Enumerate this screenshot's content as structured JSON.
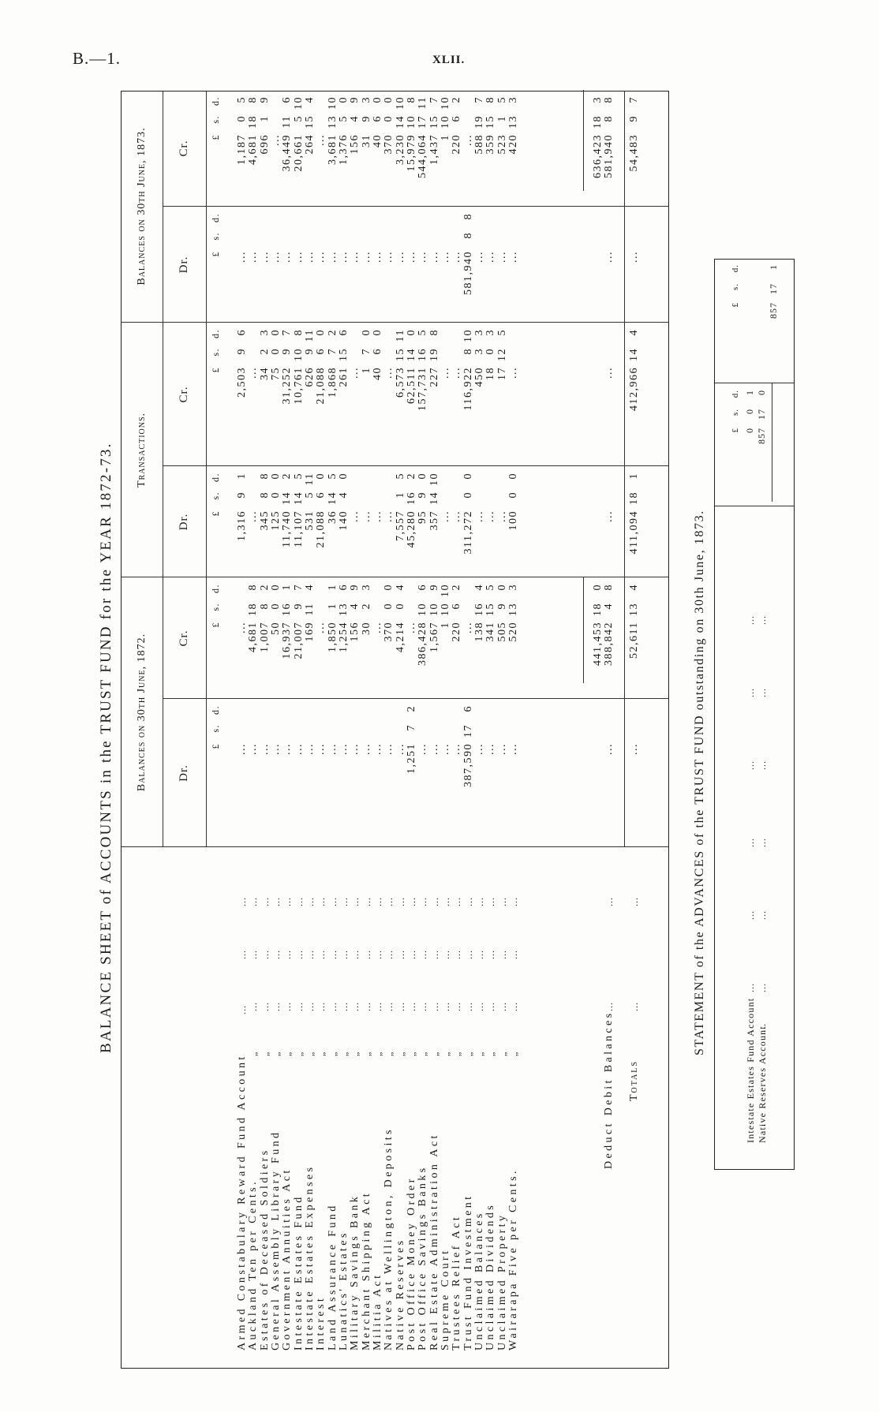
{
  "page": {
    "code": "B.—1.",
    "number": "XLII."
  },
  "balance_sheet": {
    "title": "BALANCE SHEET of ACCOUNTS in the TRUST FUND for the YEAR 1872-73.",
    "headers": {
      "bal1872": "Balances on 30th June, 1872.",
      "transactions": "Transactions.",
      "bal1873": "Balances on 30th June, 1873.",
      "dr": "Dr.",
      "cr": "Cr.",
      "pound": "£",
      "shilling": "s.",
      "pence": "d."
    },
    "ditto": "„",
    "dots": "...",
    "columns": [
      "b72_dr",
      "b72_cr",
      "tr_dr",
      "tr_cr",
      "b73_dr",
      "b73_cr"
    ],
    "rows": [
      {
        "account": "Armed Constabulary Reward Fund Account",
        "b72_dr": [
          "..."
        ],
        "b72_cr": [
          "..."
        ],
        "tr_dr": [
          "1,316",
          "9",
          "1"
        ],
        "tr_cr": [
          "2,503",
          "9",
          "6"
        ],
        "b73_dr": [
          "..."
        ],
        "b73_cr": [
          "1,187",
          "0",
          "5"
        ]
      },
      {
        "account": "Auckland Ten per Cents.",
        "b72_dr": [
          "..."
        ],
        "b72_cr": [
          "4,681",
          "18",
          "8"
        ],
        "tr_dr": [
          "..."
        ],
        "tr_cr": [
          "..."
        ],
        "b73_dr": [
          "..."
        ],
        "b73_cr": [
          "4,681",
          "18",
          "8"
        ]
      },
      {
        "account": "Estates of Deceased Soldiers",
        "b72_dr": [
          "..."
        ],
        "b72_cr": [
          "1,007",
          "8",
          "2"
        ],
        "tr_dr": [
          "345",
          "8",
          "8"
        ],
        "tr_cr": [
          "34",
          "2",
          "3"
        ],
        "b73_dr": [
          "..."
        ],
        "b73_cr": [
          "696",
          "1",
          "9"
        ]
      },
      {
        "account": "General Assembly Library Fund",
        "b72_dr": [
          "..."
        ],
        "b72_cr": [
          "50",
          "0",
          "0"
        ],
        "tr_dr": [
          "125",
          "0",
          "0"
        ],
        "tr_cr": [
          "75",
          "0",
          "0"
        ],
        "b73_dr": [
          "..."
        ],
        "b73_cr": [
          "..."
        ]
      },
      {
        "account": "Government Annuities Act",
        "b72_dr": [
          "..."
        ],
        "b72_cr": [
          "16,937",
          "16",
          "1"
        ],
        "tr_dr": [
          "11,740",
          "14",
          "2"
        ],
        "tr_cr": [
          "31,252",
          "9",
          "7"
        ],
        "b73_dr": [
          "..."
        ],
        "b73_cr": [
          "36,449",
          "11",
          "6"
        ]
      },
      {
        "account": "Intestate Estates Fund",
        "b72_dr": [
          "..."
        ],
        "b72_cr": [
          "21,007",
          "9",
          "7"
        ],
        "tr_dr": [
          "11,107",
          "14",
          "5"
        ],
        "tr_cr": [
          "10,761",
          "10",
          "8"
        ],
        "b73_dr": [
          "..."
        ],
        "b73_cr": [
          "20,661",
          "5",
          "10"
        ]
      },
      {
        "account": "Intestate Estates Expenses",
        "b72_dr": [
          "..."
        ],
        "b72_cr": [
          "169",
          "11",
          "4"
        ],
        "tr_dr": [
          "531",
          "5",
          "11"
        ],
        "tr_cr": [
          "626",
          "9",
          "11"
        ],
        "b73_dr": [
          "..."
        ],
        "b73_cr": [
          "264",
          "15",
          "4"
        ]
      },
      {
        "account": "Interest",
        "b72_dr": [
          "..."
        ],
        "b72_cr": [
          "..."
        ],
        "tr_dr": [
          "21,088",
          "6",
          "0"
        ],
        "tr_cr": [
          "21,088",
          "6",
          "0"
        ],
        "b73_dr": [
          "..."
        ],
        "b73_cr": [
          "..."
        ]
      },
      {
        "account": "Land Assurance Fund",
        "b72_dr": [
          "..."
        ],
        "b72_cr": [
          "1,850",
          "1",
          "1"
        ],
        "tr_dr": [
          "36",
          "14",
          "5"
        ],
        "tr_cr": [
          "1,868",
          "7",
          "2"
        ],
        "b73_dr": [
          "..."
        ],
        "b73_cr": [
          "3,681",
          "13",
          "10"
        ]
      },
      {
        "account": "Lunatics' Estates",
        "b72_dr": [
          "..."
        ],
        "b72_cr": [
          "1,254",
          "13",
          "6"
        ],
        "tr_dr": [
          "140",
          "4",
          "0"
        ],
        "tr_cr": [
          "261",
          "15",
          "6"
        ],
        "b73_dr": [
          "..."
        ],
        "b73_cr": [
          "1,376",
          "5",
          "0"
        ]
      },
      {
        "account": "Military Savings Bank",
        "b72_dr": [
          "..."
        ],
        "b72_cr": [
          "156",
          "4",
          "9"
        ],
        "tr_dr": [
          "..."
        ],
        "tr_cr": [
          "..."
        ],
        "b73_dr": [
          "..."
        ],
        "b73_cr": [
          "156",
          "4",
          "9"
        ]
      },
      {
        "account": "Merchant Shipping Act",
        "b72_dr": [
          "..."
        ],
        "b72_cr": [
          "30",
          "2",
          "3"
        ],
        "tr_dr": [
          "..."
        ],
        "tr_cr": [
          "1",
          "7",
          "0"
        ],
        "b73_dr": [
          "..."
        ],
        "b73_cr": [
          "31",
          "9",
          "3"
        ]
      },
      {
        "account": "Militia Act",
        "b72_dr": [
          "..."
        ],
        "b72_cr": [
          "..."
        ],
        "tr_dr": [
          "..."
        ],
        "tr_cr": [
          "40",
          "6",
          "0"
        ],
        "b73_dr": [
          "..."
        ],
        "b73_cr": [
          "40",
          "6",
          "0"
        ]
      },
      {
        "account": "Natives at Wellington, Deposits",
        "b72_dr": [
          "..."
        ],
        "b72_cr": [
          "370",
          "0",
          "0"
        ],
        "tr_dr": [
          "..."
        ],
        "tr_cr": [
          "..."
        ],
        "b73_dr": [
          "..."
        ],
        "b73_cr": [
          "370",
          "0",
          "0"
        ]
      },
      {
        "account": "Native Reserves",
        "b72_dr": [
          "..."
        ],
        "b72_cr": [
          "4,214",
          "0",
          "4"
        ],
        "tr_dr": [
          "7,557",
          "1",
          "5"
        ],
        "tr_cr": [
          "6,573",
          "15",
          "11"
        ],
        "b73_dr": [
          "..."
        ],
        "b73_cr": [
          "3,230",
          "14",
          "10"
        ]
      },
      {
        "account": "Post Office Money Order",
        "b72_dr": [
          "1,251",
          "7",
          "2"
        ],
        "b72_cr": [
          "..."
        ],
        "tr_dr": [
          "45,280",
          "16",
          "2"
        ],
        "tr_cr": [
          "62,511",
          "14",
          "0"
        ],
        "b73_dr": [
          "..."
        ],
        "b73_cr": [
          "15,979",
          "10",
          "8"
        ]
      },
      {
        "account": "Post Office Savings Banks",
        "b72_dr": [
          "..."
        ],
        "b72_cr": [
          "386,428",
          "10",
          "6"
        ],
        "tr_dr": [
          "95",
          "9",
          "0"
        ],
        "tr_cr": [
          "157,731",
          "16",
          "5"
        ],
        "b73_dr": [
          "..."
        ],
        "b73_cr": [
          "544,064",
          "17",
          "11"
        ]
      },
      {
        "account": "Real Estate Administration Act",
        "b72_dr": [
          "..."
        ],
        "b72_cr": [
          "1,567",
          "10",
          "9"
        ],
        "tr_dr": [
          "357",
          "14",
          "10"
        ],
        "tr_cr": [
          "227",
          "19",
          "8"
        ],
        "b73_dr": [
          "..."
        ],
        "b73_cr": [
          "1,437",
          "15",
          "7"
        ]
      },
      {
        "account": "Supreme Court",
        "b72_dr": [
          "..."
        ],
        "b72_cr": [
          "1",
          "10",
          "10"
        ],
        "tr_dr": [
          "..."
        ],
        "tr_cr": [
          "..."
        ],
        "b73_dr": [
          "..."
        ],
        "b73_cr": [
          "1",
          "10",
          "10"
        ]
      },
      {
        "account": "Trustees Relief Act",
        "b72_dr": [
          "..."
        ],
        "b72_cr": [
          "220",
          "6",
          "2"
        ],
        "tr_dr": [
          "..."
        ],
        "tr_cr": [
          "..."
        ],
        "b73_dr": [
          "..."
        ],
        "b73_cr": [
          "220",
          "6",
          "2"
        ]
      },
      {
        "account": "Trust Fund Investment",
        "b72_dr": [
          "387,590",
          "17",
          "6"
        ],
        "b72_cr": [
          "..."
        ],
        "tr_dr": [
          "311,272",
          "0",
          "0"
        ],
        "tr_cr": [
          "116,922",
          "8",
          "10"
        ],
        "b73_dr": [
          "581,940",
          "8",
          "8"
        ],
        "b73_cr": [
          "..."
        ]
      },
      {
        "account": "Unclaimed Balances",
        "b72_dr": [
          "..."
        ],
        "b72_cr": [
          "138",
          "16",
          "4"
        ],
        "tr_dr": [
          "..."
        ],
        "tr_cr": [
          "450",
          "3",
          "3"
        ],
        "b73_dr": [
          "..."
        ],
        "b73_cr": [
          "588",
          "19",
          "7"
        ]
      },
      {
        "account": "Unclaimed Dividends",
        "b72_dr": [
          "..."
        ],
        "b72_cr": [
          "341",
          "15",
          "5"
        ],
        "tr_dr": [
          "..."
        ],
        "tr_cr": [
          "18",
          "0",
          "3"
        ],
        "b73_dr": [
          "..."
        ],
        "b73_cr": [
          "359",
          "15",
          "8"
        ]
      },
      {
        "account": "Unclaimed Property",
        "b72_dr": [
          "..."
        ],
        "b72_cr": [
          "505",
          "9",
          "0"
        ],
        "tr_dr": [
          "..."
        ],
        "tr_cr": [
          "17",
          "12",
          "5"
        ],
        "b73_dr": [
          "..."
        ],
        "b73_cr": [
          "523",
          "1",
          "5"
        ]
      },
      {
        "account": "Wairarapa Five per Cents.",
        "b72_dr": [
          "..."
        ],
        "b72_cr": [
          "520",
          "13",
          "3"
        ],
        "tr_dr": [
          "100",
          "0",
          "0"
        ],
        "tr_cr": [
          "..."
        ],
        "b73_dr": [
          "..."
        ],
        "b73_cr": [
          "420",
          "13",
          "3"
        ]
      }
    ],
    "subtotal": {
      "b72_cr": [
        "441,453",
        "18",
        "0"
      ],
      "b73_cr": [
        "636,423",
        "18",
        "3"
      ]
    },
    "deduct": {
      "label": "Deduct Debit Balances",
      "b72_dr": [
        "..."
      ],
      "b72_cr": [
        "388,842",
        "4",
        "8"
      ],
      "tr_dr": [
        "..."
      ],
      "tr_cr": [
        "..."
      ],
      "b73_dr": [
        "..."
      ],
      "b73_cr": [
        "581,940",
        "8",
        "8"
      ]
    },
    "totals": {
      "label": "Totals",
      "b72_dr": [
        "..."
      ],
      "b72_cr": [
        "52,611",
        "13",
        "4"
      ],
      "tr_dr": [
        "411,094",
        "18",
        "1"
      ],
      "tr_cr": [
        "412,966",
        "14",
        "4"
      ],
      "b73_dr": [
        "..."
      ],
      "b73_cr": [
        "54,483",
        "9",
        "7"
      ]
    }
  },
  "statement": {
    "title": "STATEMENT of the ADVANCES of the TRUST FUND outstanding on 30th June, 1873.",
    "headers": {
      "pound": "£",
      "shilling": "s.",
      "pence": "d."
    },
    "dots": "...",
    "rows": [
      {
        "account": "Intestate Estates Fund Account",
        "amount": [
          "0",
          "0",
          "1"
        ]
      },
      {
        "account": "Native Reserves Account",
        "amount": [
          "857",
          "17",
          "0"
        ]
      }
    ],
    "total": [
      "857",
      "17",
      "1"
    ]
  }
}
